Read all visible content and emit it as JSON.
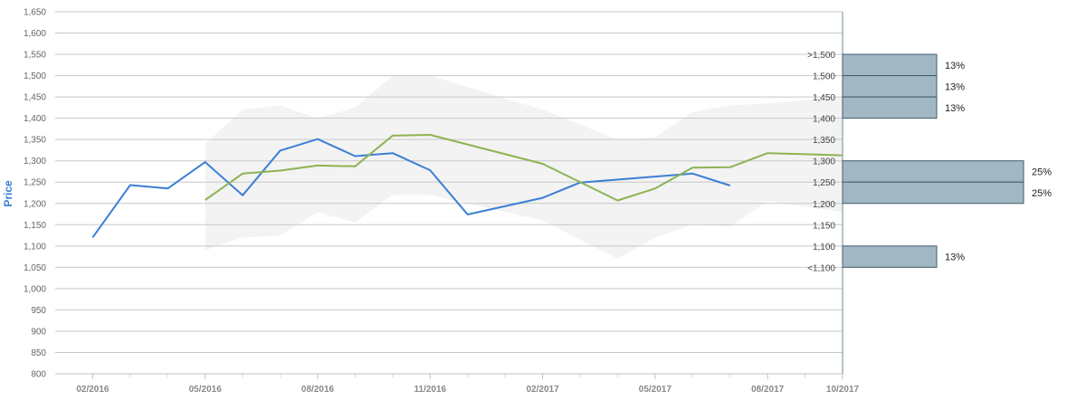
{
  "chart_data": {
    "type": "line",
    "ylabel": "Price",
    "ylim": [
      800,
      1650
    ],
    "yticks": [
      "800",
      "850",
      "900",
      "950",
      "1,000",
      "1,050",
      "1,100",
      "1,150",
      "1,200",
      "1,250",
      "1,300",
      "1,350",
      "1,400",
      "1,450",
      "1,500",
      "1,550",
      "1,600",
      "1,650"
    ],
    "ytick_values": [
      800,
      850,
      900,
      950,
      1000,
      1050,
      1100,
      1150,
      1200,
      1250,
      1300,
      1350,
      1400,
      1450,
      1500,
      1550,
      1600,
      1650
    ],
    "xlim": [
      "2016-01",
      "2017-10"
    ],
    "xticks": [
      {
        "label": "02/2016",
        "x": "2016-02"
      },
      {
        "label": "05/2016",
        "x": "2016-05"
      },
      {
        "label": "08/2016",
        "x": "2016-08"
      },
      {
        "label": "11/2016",
        "x": "2016-11"
      },
      {
        "label": "02/2017",
        "x": "2017-02"
      },
      {
        "label": "05/2017",
        "x": "2017-05"
      },
      {
        "label": "08/2017",
        "x": "2017-08"
      },
      {
        "label": "10/2017",
        "x": "2017-10"
      }
    ],
    "minor_ticks": [
      "2016-03",
      "2016-04",
      "2016-06",
      "2016-07",
      "2016-09",
      "2016-10",
      "2016-12",
      "2017-01",
      "2017-03",
      "2017-04",
      "2017-06",
      "2017-07",
      "2017-09"
    ],
    "grid": true,
    "series": [
      {
        "color": "#3a7fd5",
        "x": [
          "2016-02",
          "2016-03",
          "2016-04",
          "2016-05",
          "2016-06",
          "2016-07",
          "2016-08",
          "2016-09",
          "2016-10",
          "2016-11",
          "2016-12",
          "2017-02",
          "2017-03",
          "2017-06",
          "2017-07"
        ],
        "y": [
          1120,
          1243,
          1235,
          1297,
          1219,
          1324,
          1351,
          1311,
          1318,
          1278,
          1174,
          1213,
          1249,
          1270,
          1242
        ]
      },
      {
        "color": "#8db352",
        "x": [
          "2016-05",
          "2016-06",
          "2016-07",
          "2016-08",
          "2016-09",
          "2016-10",
          "2016-11",
          "2017-02",
          "2017-04",
          "2017-05",
          "2017-06",
          "2017-07",
          "2017-08",
          "2017-10"
        ],
        "y": [
          1208,
          1270,
          1277,
          1289,
          1287,
          1359,
          1361,
          1293,
          1207,
          1235,
          1284,
          1285,
          1318,
          1313
        ]
      }
    ],
    "band": {
      "color": "#f3f3f3",
      "x": [
        "2016-05",
        "2016-06",
        "2016-07",
        "2016-08",
        "2016-09",
        "2016-10",
        "2016-11",
        "2017-02",
        "2017-04",
        "2017-05",
        "2017-06",
        "2017-07",
        "2017-08",
        "2017-10"
      ],
      "upper": [
        1340,
        1420,
        1430,
        1400,
        1425,
        1500,
        1500,
        1420,
        1350,
        1355,
        1415,
        1430,
        1435,
        1450
      ],
      "lower": [
        1090,
        1120,
        1125,
        1180,
        1155,
        1220,
        1220,
        1160,
        1070,
        1120,
        1150,
        1145,
        1205,
        1180
      ]
    },
    "distribution": {
      "bins": [
        {
          "label_low": "1,500",
          "label_high": ">1,500",
          "low": 1500,
          "high": 1550,
          "percent": 13
        },
        {
          "label_low": "1,450",
          "label_high": "1,500",
          "low": 1450,
          "high": 1500,
          "percent": 13
        },
        {
          "label_low": "1,400",
          "label_high": "1,450",
          "low": 1400,
          "high": 1450,
          "percent": 13
        },
        {
          "label_low": "1,250",
          "label_high": "1,300",
          "low": 1250,
          "high": 1300,
          "percent": 25
        },
        {
          "label_low": "1,200",
          "label_high": "1,250",
          "low": 1200,
          "high": 1250,
          "percent": 25
        },
        {
          "label_low": "<1,100",
          "label_high": "1,100",
          "low": 1050,
          "high": 1100,
          "percent": 13
        }
      ],
      "labels": [
        "13%",
        "13%",
        "13%",
        "25%",
        "25%",
        "13%"
      ],
      "boundary_labels": [
        {
          "text": ">1,500",
          "y": 1550
        },
        {
          "text": "1,500",
          "y": 1500
        },
        {
          "text": "1,450",
          "y": 1450
        },
        {
          "text": "1,400",
          "y": 1400
        },
        {
          "text": "1,350",
          "y": 1350
        },
        {
          "text": "1,300",
          "y": 1300
        },
        {
          "text": "1,250",
          "y": 1250
        },
        {
          "text": "1,200",
          "y": 1200
        },
        {
          "text": "1,150",
          "y": 1150
        },
        {
          "text": "1,100",
          "y": 1100
        },
        {
          "text": "<1,100",
          "y": 1050
        }
      ],
      "fill": "#a1b8c4",
      "stroke": "#3f5b69"
    }
  }
}
